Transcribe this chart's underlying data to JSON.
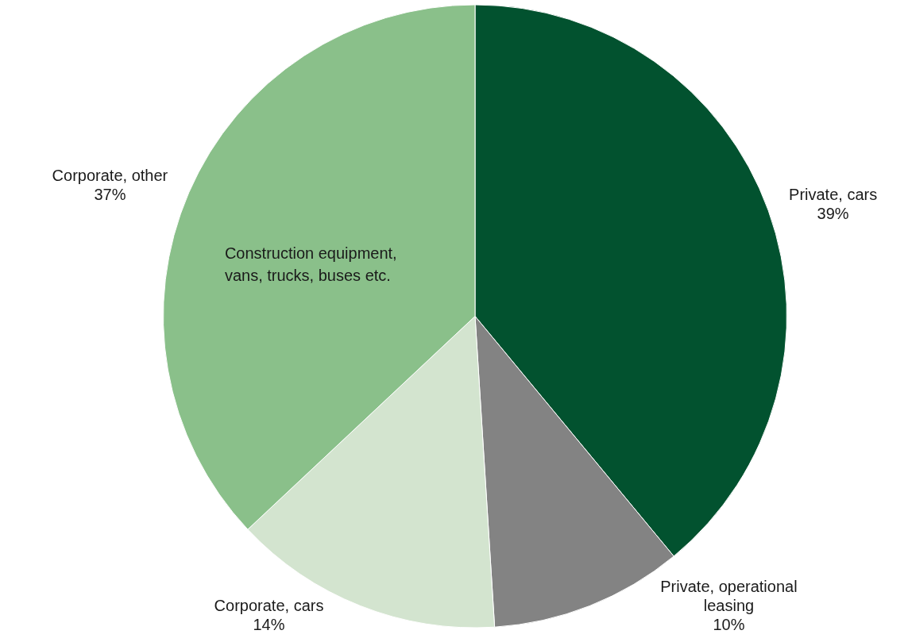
{
  "chart_data": {
    "type": "pie",
    "categories": [
      "Private, cars",
      "Private, operational leasing",
      "Corporate, cars",
      "Corporate, other"
    ],
    "values": [
      39,
      10,
      14,
      37
    ],
    "colors": [
      "#02522f",
      "#838383",
      "#d3e4cf",
      "#8ac08a"
    ],
    "value_labels": [
      "39%",
      "10%",
      "14%",
      "37%"
    ],
    "annotations": [
      "Construction equipment, vans, trucks, buses etc."
    ]
  }
}
